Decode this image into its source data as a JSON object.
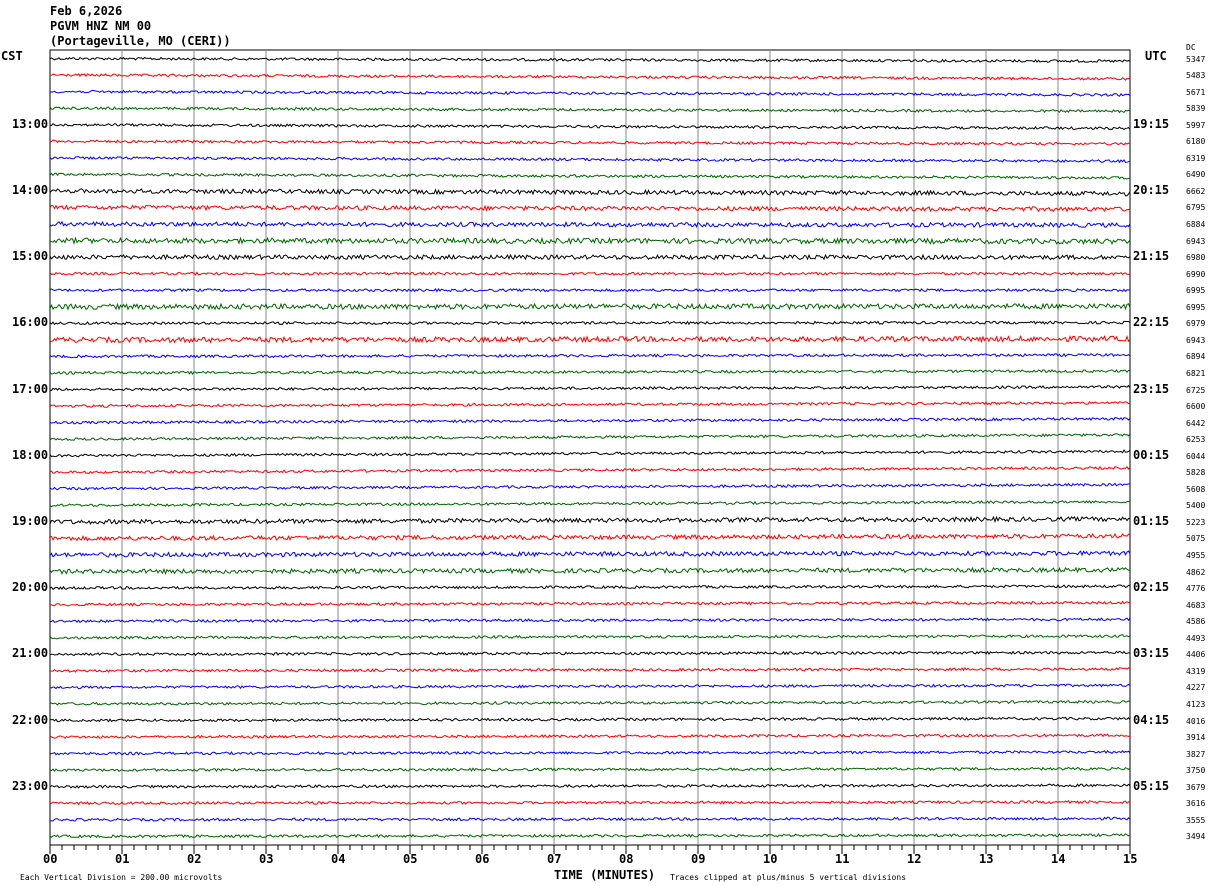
{
  "header": {
    "date": "Feb 6,2026",
    "station": "PGVM HNZ NM 00",
    "location": "(Portageville, MO (CERI))"
  },
  "left_tz": "CST",
  "right_tz": "UTC",
  "dc_header": "DC",
  "footer": {
    "xlabel": "TIME (MINUTES)",
    "scale_note": "Each Vertical Division =  200.00 microvolts",
    "clip_note": "Traces clipped at plus/minus 5 vertical divisions"
  },
  "chart_data": {
    "type": "line",
    "title": "PGVM HNZ NM 00 helicorder",
    "xlabel": "TIME (MINUTES)",
    "xlim": [
      0,
      15
    ],
    "x_ticks": [
      "00",
      "01",
      "02",
      "03",
      "04",
      "05",
      "06",
      "07",
      "08",
      "09",
      "10",
      "11",
      "12",
      "13",
      "14",
      "15"
    ],
    "trace_count": 48,
    "trace_colors": [
      "#000000",
      "#ff0000",
      "#0000ff",
      "#006400"
    ],
    "left_hour_labels": [
      "13:00",
      "14:00",
      "15:00",
      "16:00",
      "17:00",
      "18:00",
      "19:00",
      "20:00",
      "21:00",
      "22:00",
      "23:00"
    ],
    "right_hour_labels": [
      "19:15",
      "20:15",
      "21:15",
      "22:15",
      "23:15",
      "00:15",
      "01:15",
      "02:15",
      "03:15",
      "04:15",
      "05:15"
    ],
    "dc_offsets": [
      5347,
      5483,
      5671,
      5839,
      5997,
      6180,
      6319,
      6490,
      6662,
      6795,
      6884,
      6943,
      6980,
      6990,
      6995,
      6995,
      6979,
      6943,
      6894,
      6821,
      6725,
      6600,
      6442,
      6253,
      6044,
      5828,
      5608,
      5400,
      5223,
      5075,
      4955,
      4862,
      4776,
      4683,
      4586,
      4493,
      4406,
      4319,
      4227,
      4123,
      4016,
      3914,
      3827,
      3750,
      3679,
      3616,
      3555,
      3494
    ],
    "units": "microvolts per division: 200"
  }
}
